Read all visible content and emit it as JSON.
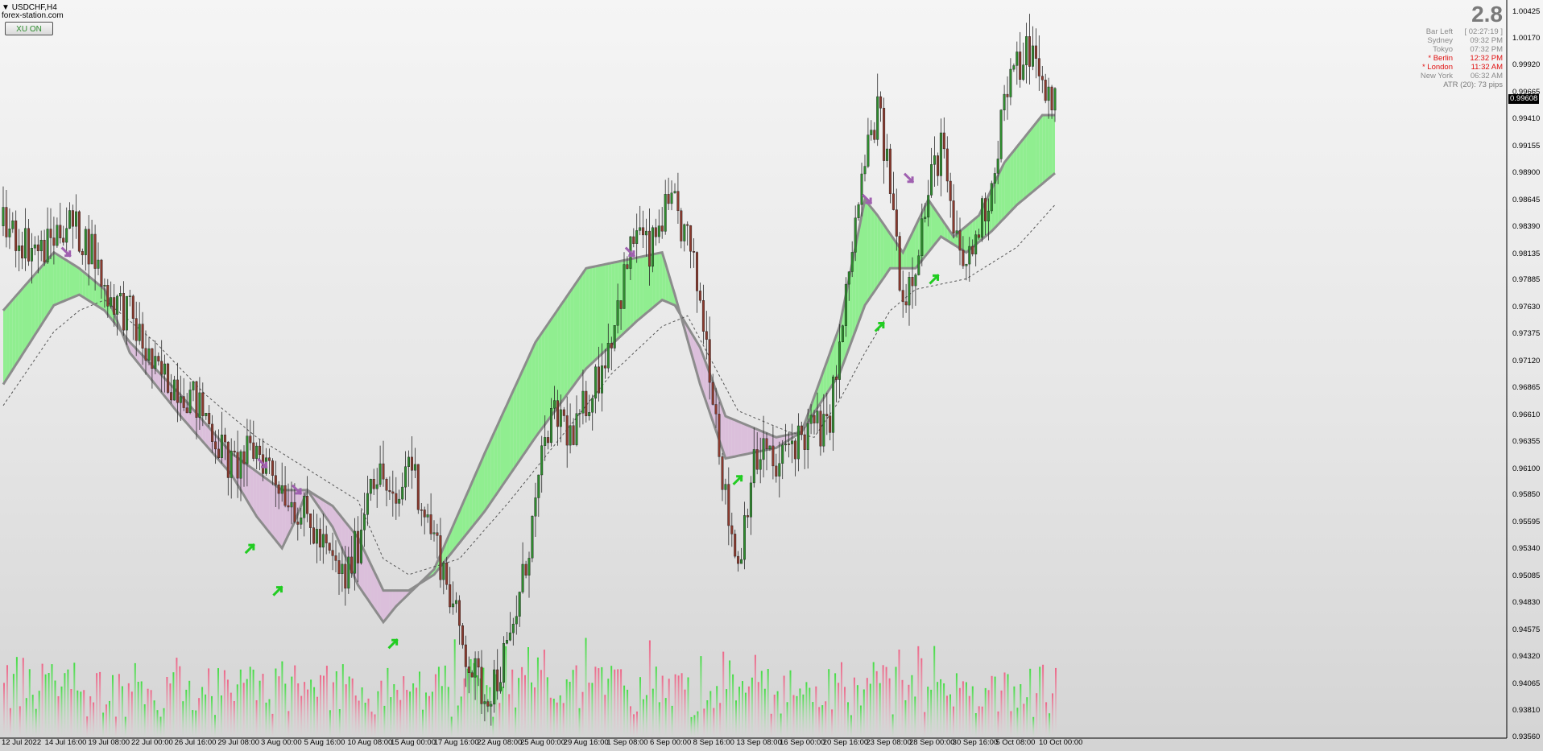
{
  "header": {
    "symbol": "USDCHF,H4",
    "watermark": "forex-station.com",
    "button_label": "XU ON",
    "big_value": "2.8"
  },
  "clock": {
    "rows": [
      {
        "name": "Bar Left",
        "value": "[ 02:27:19 ]",
        "color": "#8a8a8a"
      },
      {
        "name": "Sydney",
        "value": "09:32 PM",
        "color": "#8a8a8a"
      },
      {
        "name": "Tokyo",
        "value": "07:32 PM",
        "color": "#8a8a8a"
      },
      {
        "name": "* Berlin",
        "value": "12:32 PM",
        "color": "#e01010"
      },
      {
        "name": "* London",
        "value": "11:32 AM",
        "color": "#e01010"
      },
      {
        "name": "New York",
        "value": "06:32 AM",
        "color": "#8a8a8a"
      }
    ],
    "atr": "ATR (20): 73 pips"
  },
  "current_price": "0.99608",
  "colors": {
    "bull_band": "#90ee90",
    "bear_band": "#dbbfdb",
    "band_edge": "#8c8c8c",
    "candle_up": "#2e8b2e",
    "candle_down": "#8b3a2e",
    "vol_up": "#44dd44",
    "vol_down": "#ee6688",
    "arrow_up": "#22cc22",
    "arrow_down": "#a060b0"
  },
  "chart_data": {
    "type": "candlestick",
    "title": "USDCHF,H4",
    "y_ticks": [
      "1.00425",
      "1.00170",
      "0.99920",
      "0.99665",
      "0.99410",
      "0.99155",
      "0.98900",
      "0.98645",
      "0.98390",
      "0.98135",
      "0.97885",
      "0.97630",
      "0.97375",
      "0.97120",
      "0.96865",
      "0.96610",
      "0.96355",
      "0.96100",
      "0.95850",
      "0.95595",
      "0.95340",
      "0.95085",
      "0.94830",
      "0.94575",
      "0.94320",
      "0.94065",
      "0.93810",
      "0.93560"
    ],
    "ylim": [
      0.9356,
      1.00425
    ],
    "x_ticks": [
      "12 Jul 2022",
      "14 Jul 16:00",
      "19 Jul 08:00",
      "22 Jul 00:00",
      "26 Jul 16:00",
      "29 Jul 08:00",
      "3 Aug 00:00",
      "5 Aug 16:00",
      "10 Aug 08:00",
      "15 Aug 00:00",
      "17 Aug 16:00",
      "22 Aug 08:00",
      "25 Aug 00:00",
      "29 Aug 16:00",
      "1 Sep 08:00",
      "6 Sep 00:00",
      "8 Sep 16:00",
      "13 Sep 08:00",
      "16 Sep 00:00",
      "20 Sep 16:00",
      "23 Sep 08:00",
      "28 Sep 00:00",
      "30 Sep 16:00",
      "5 Oct 08:00",
      "10 Oct 00:00"
    ],
    "close_path": [
      [
        0,
        0.984
      ],
      [
        3,
        0.9815
      ],
      [
        5,
        0.9845
      ],
      [
        7,
        0.982
      ],
      [
        8,
        0.978
      ],
      [
        10,
        0.9755
      ],
      [
        12,
        0.97
      ],
      [
        14,
        0.969
      ],
      [
        16,
        0.966
      ],
      [
        18,
        0.961
      ],
      [
        20,
        0.963
      ],
      [
        22,
        0.9595
      ],
      [
        24,
        0.956
      ],
      [
        26,
        0.952
      ],
      [
        27,
        0.9505
      ],
      [
        28,
        0.954
      ],
      [
        29,
        0.961
      ],
      [
        30,
        0.96
      ],
      [
        31,
        0.9565
      ],
      [
        32,
        0.9625
      ],
      [
        33,
        0.958
      ],
      [
        34,
        0.9545
      ],
      [
        35,
        0.9505
      ],
      [
        36,
        0.9455
      ],
      [
        37,
        0.942
      ],
      [
        38,
        0.9395
      ],
      [
        39,
        0.9415
      ],
      [
        40,
        0.9445
      ],
      [
        41,
        0.9505
      ],
      [
        42,
        0.9575
      ],
      [
        43,
        0.965
      ],
      [
        44,
        0.966
      ],
      [
        45,
        0.9635
      ],
      [
        46,
        0.9675
      ],
      [
        47,
        0.97
      ],
      [
        48,
        0.974
      ],
      [
        49,
        0.979
      ],
      [
        50,
        0.984
      ],
      [
        51,
        0.981
      ],
      [
        52,
        0.985
      ],
      [
        53,
        0.9855
      ],
      [
        54,
        0.9825
      ],
      [
        55,
        0.977
      ],
      [
        56,
        0.969
      ],
      [
        57,
        0.958
      ],
      [
        58,
        0.952
      ],
      [
        59,
        0.9605
      ],
      [
        60,
        0.963
      ],
      [
        61,
        0.9605
      ],
      [
        62,
        0.9635
      ],
      [
        63,
        0.964
      ],
      [
        64,
        0.965
      ],
      [
        65,
        0.9645
      ],
      [
        66,
        0.972
      ],
      [
        67,
        0.982
      ],
      [
        68,
        0.99
      ],
      [
        69,
        0.995
      ],
      [
        70,
        0.988
      ],
      [
        71,
        0.977
      ],
      [
        72,
        0.981
      ],
      [
        73,
        0.987
      ],
      [
        74,
        0.992
      ],
      [
        75,
        0.983
      ],
      [
        76,
        0.98
      ],
      [
        77,
        0.984
      ],
      [
        78,
        0.988
      ],
      [
        79,
        0.996
      ],
      [
        80,
        0.999
      ],
      [
        81,
        1.001
      ],
      [
        82,
        0.997
      ],
      [
        83,
        0.996
      ]
    ],
    "bands": {
      "fast": [
        [
          0,
          0.976
        ],
        [
          4,
          0.9815
        ],
        [
          6,
          0.98
        ],
        [
          8,
          0.978
        ],
        [
          10,
          0.972
        ],
        [
          14,
          0.966
        ],
        [
          18,
          0.9605
        ],
        [
          20,
          0.9565
        ],
        [
          22,
          0.9535
        ],
        [
          23,
          0.956
        ],
        [
          24,
          0.959
        ],
        [
          26,
          0.9555
        ],
        [
          28,
          0.95
        ],
        [
          30,
          0.9465
        ],
        [
          31,
          0.948
        ],
        [
          34,
          0.9515
        ],
        [
          38,
          0.9625
        ],
        [
          42,
          0.973
        ],
        [
          46,
          0.98
        ],
        [
          52,
          0.9815
        ],
        [
          53,
          0.9775
        ],
        [
          55,
          0.969
        ],
        [
          57,
          0.962
        ],
        [
          59,
          0.9625
        ],
        [
          61,
          0.963
        ],
        [
          63,
          0.9645
        ],
        [
          66,
          0.9745
        ],
        [
          68,
          0.9865
        ],
        [
          69,
          0.985
        ],
        [
          71,
          0.9815
        ],
        [
          73,
          0.9865
        ],
        [
          75,
          0.983
        ],
        [
          77,
          0.985
        ],
        [
          79,
          0.99
        ],
        [
          82,
          0.9945
        ],
        [
          83,
          0.9945
        ]
      ],
      "slow": [
        [
          0,
          0.969
        ],
        [
          4,
          0.9765
        ],
        [
          6,
          0.9775
        ],
        [
          8,
          0.976
        ],
        [
          10,
          0.973
        ],
        [
          14,
          0.968
        ],
        [
          18,
          0.9625
        ],
        [
          22,
          0.959
        ],
        [
          24,
          0.959
        ],
        [
          26,
          0.9575
        ],
        [
          28,
          0.9545
        ],
        [
          30,
          0.9495
        ],
        [
          32,
          0.9495
        ],
        [
          34,
          0.951
        ],
        [
          38,
          0.957
        ],
        [
          42,
          0.964
        ],
        [
          46,
          0.9705
        ],
        [
          50,
          0.975
        ],
        [
          52,
          0.977
        ],
        [
          53,
          0.9765
        ],
        [
          55,
          0.9725
        ],
        [
          57,
          0.966
        ],
        [
          59,
          0.965
        ],
        [
          61,
          0.964
        ],
        [
          63,
          0.9645
        ],
        [
          66,
          0.97
        ],
        [
          68,
          0.9765
        ],
        [
          70,
          0.98
        ],
        [
          72,
          0.98
        ],
        [
          74,
          0.983
        ],
        [
          76,
          0.9815
        ],
        [
          78,
          0.9835
        ],
        [
          80,
          0.986
        ],
        [
          83,
          0.989
        ]
      ],
      "dashed": [
        [
          0,
          0.967
        ],
        [
          4,
          0.974
        ],
        [
          6,
          0.976
        ],
        [
          8,
          0.977
        ],
        [
          12,
          0.973
        ],
        [
          16,
          0.968
        ],
        [
          20,
          0.964
        ],
        [
          24,
          0.961
        ],
        [
          28,
          0.958
        ],
        [
          30,
          0.9525
        ],
        [
          32,
          0.951
        ],
        [
          36,
          0.9525
        ],
        [
          40,
          0.958
        ],
        [
          44,
          0.964
        ],
        [
          48,
          0.97
        ],
        [
          52,
          0.9745
        ],
        [
          54,
          0.9755
        ],
        [
          56,
          0.971
        ],
        [
          58,
          0.9665
        ],
        [
          62,
          0.9645
        ],
        [
          64,
          0.964
        ],
        [
          66,
          0.9675
        ],
        [
          68,
          0.972
        ],
        [
          70,
          0.976
        ],
        [
          72,
          0.978
        ],
        [
          76,
          0.979
        ],
        [
          80,
          0.982
        ],
        [
          83,
          0.986
        ]
      ]
    },
    "arrows": [
      {
        "x": 5,
        "y": 0.9815,
        "dir": "down"
      },
      {
        "x": 20.5,
        "y": 0.9615,
        "dir": "down"
      },
      {
        "x": 19.5,
        "y": 0.9535,
        "dir": "up"
      },
      {
        "x": 21.7,
        "y": 0.9495,
        "dir": "up"
      },
      {
        "x": 23.2,
        "y": 0.959,
        "dir": "down"
      },
      {
        "x": 30.8,
        "y": 0.9445,
        "dir": "up"
      },
      {
        "x": 49.5,
        "y": 0.9815,
        "dir": "down"
      },
      {
        "x": 58.0,
        "y": 0.96,
        "dir": "up"
      },
      {
        "x": 68.2,
        "y": 0.9865,
        "dir": "down"
      },
      {
        "x": 69.2,
        "y": 0.9745,
        "dir": "up"
      },
      {
        "x": 71.5,
        "y": 0.9885,
        "dir": "down"
      },
      {
        "x": 73.5,
        "y": 0.979,
        "dir": "up"
      }
    ],
    "n_bars": 84
  }
}
